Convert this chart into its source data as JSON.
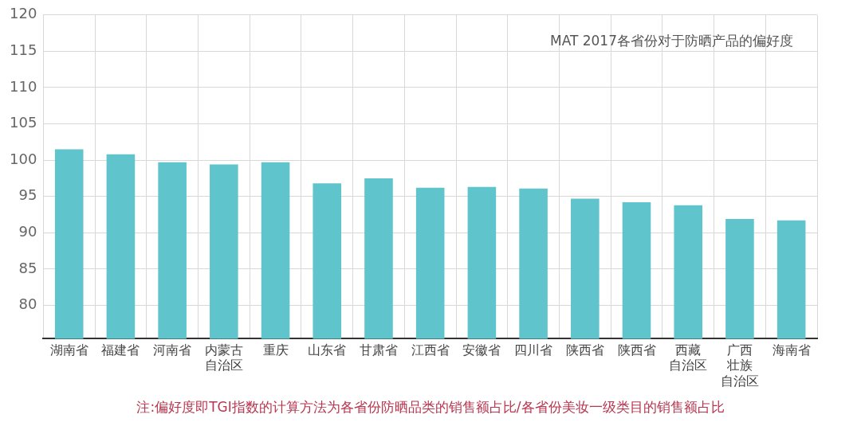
{
  "chart_data": {
    "type": "bar",
    "title": "MAT 2017各省份对于防晒产品的偏好度",
    "categories": [
      "湖南省",
      "福建省",
      "河南省",
      "内蒙古自治区",
      "重庆",
      "山东省",
      "甘肃省",
      "江西省",
      "安徽省",
      "四川省",
      "陕西省",
      "陕西省",
      "西藏自治区",
      "广西壮族自治区",
      "海南省"
    ],
    "values": [
      101.5,
      100.8,
      99.7,
      99.4,
      99.7,
      96.8,
      97.5,
      96.2,
      96.3,
      96.1,
      94.7,
      94.2,
      93.8,
      91.9,
      91.7
    ],
    "color": "#5fc4cc",
    "ylim": [
      75.4,
      120
    ],
    "yticks": [
      80,
      85,
      90,
      95,
      100,
      105,
      110,
      115,
      120
    ],
    "grid": true,
    "annotations": [
      "注:偏好度即TGI指数的计算方法为各省份防晒品类的销售额占比/各省份美妆一级类目的销售额占比"
    ]
  }
}
